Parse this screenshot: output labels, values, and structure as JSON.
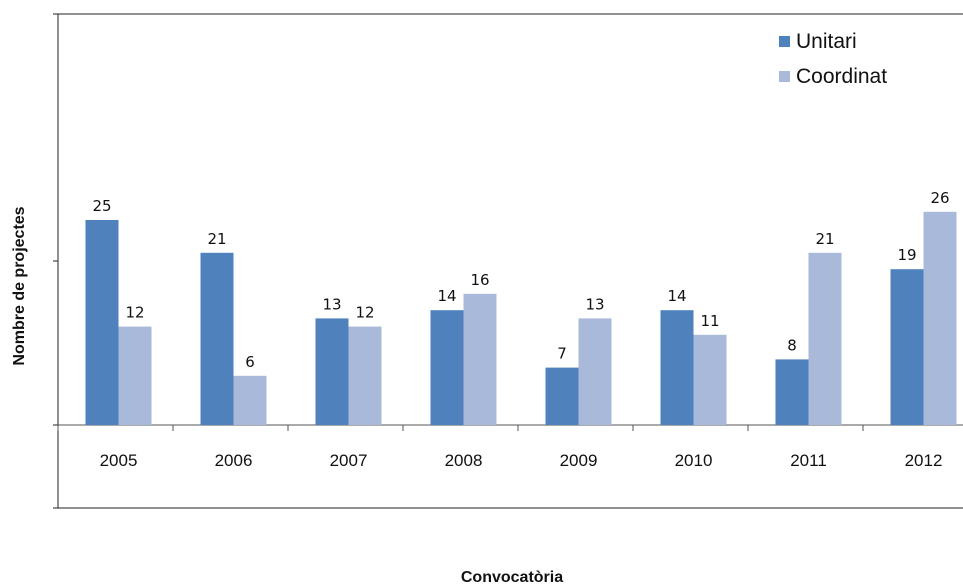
{
  "chart_data": {
    "type": "bar",
    "title": "",
    "xlabel": "Convocatòria",
    "ylabel": "Nombre de projectes",
    "categories": [
      "2005",
      "2006",
      "2007",
      "2008",
      "2009",
      "2010",
      "2011",
      "2012"
    ],
    "series": [
      {
        "name": "Unitari",
        "values": [
          25,
          21,
          13,
          14,
          7,
          14,
          8,
          19
        ],
        "color": "#4F81BD"
      },
      {
        "name": "Coordinat",
        "values": [
          12,
          6,
          12,
          16,
          13,
          11,
          21,
          26
        ],
        "color": "#A9B9D9"
      }
    ],
    "ylim": [
      -10,
      50
    ],
    "grid": false,
    "legend_position": "top-right",
    "show_data_labels": true
  }
}
